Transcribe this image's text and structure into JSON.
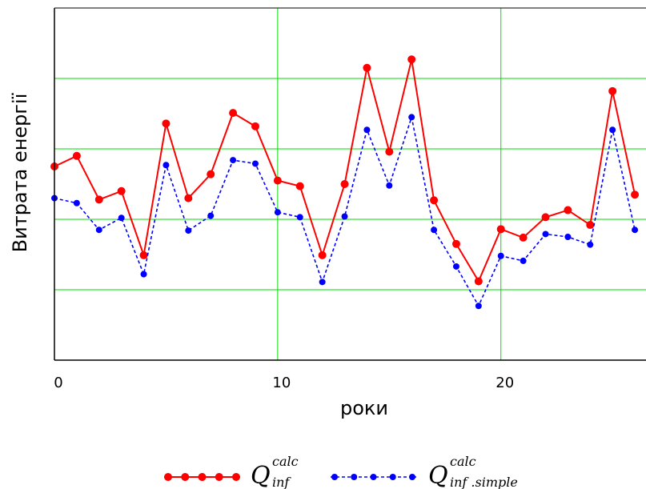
{
  "chart_data": {
    "type": "line",
    "title": "",
    "xlabel": "роки",
    "ylabel": "Витрата енергії",
    "xlim": [
      0,
      26.5
    ],
    "ylim": [
      0,
      5
    ],
    "x_ticks": [
      "0",
      "10",
      "20"
    ],
    "x_tick_values": [
      0,
      10,
      20
    ],
    "y_gridlines": [
      1,
      2,
      3,
      4
    ],
    "grid": true,
    "legend_position": "bottom",
    "x": [
      0,
      1,
      2,
      3,
      4,
      5,
      6,
      7,
      8,
      9,
      10,
      11,
      12,
      13,
      14,
      15,
      16,
      17,
      18,
      19,
      20,
      21,
      22,
      23,
      24,
      25,
      26
    ],
    "series": [
      {
        "name": "Q_inf^calc",
        "legend_main": "Q",
        "legend_sup": "calc",
        "legend_sub": "inf",
        "color": "#ff0000",
        "line_style": "solid",
        "values": [
          2.75,
          2.9,
          2.28,
          2.4,
          1.49,
          3.36,
          2.3,
          2.64,
          3.51,
          3.32,
          2.55,
          2.47,
          1.49,
          2.5,
          4.15,
          2.96,
          4.27,
          2.27,
          1.65,
          1.12,
          1.86,
          1.74,
          2.03,
          2.13,
          1.92,
          3.82,
          2.35
        ]
      },
      {
        "name": "Q_inf.simple^calc",
        "legend_main": "Q",
        "legend_sup": "calc",
        "legend_sub": "inf .simple",
        "color": "#0000ff",
        "line_style": "dotted",
        "values": [
          2.3,
          2.23,
          1.85,
          2.02,
          1.22,
          2.77,
          1.84,
          2.05,
          2.84,
          2.79,
          2.1,
          2.03,
          1.11,
          2.04,
          3.27,
          2.48,
          3.45,
          1.85,
          1.33,
          0.77,
          1.48,
          1.41,
          1.79,
          1.75,
          1.64,
          3.27,
          1.85
        ]
      }
    ]
  }
}
